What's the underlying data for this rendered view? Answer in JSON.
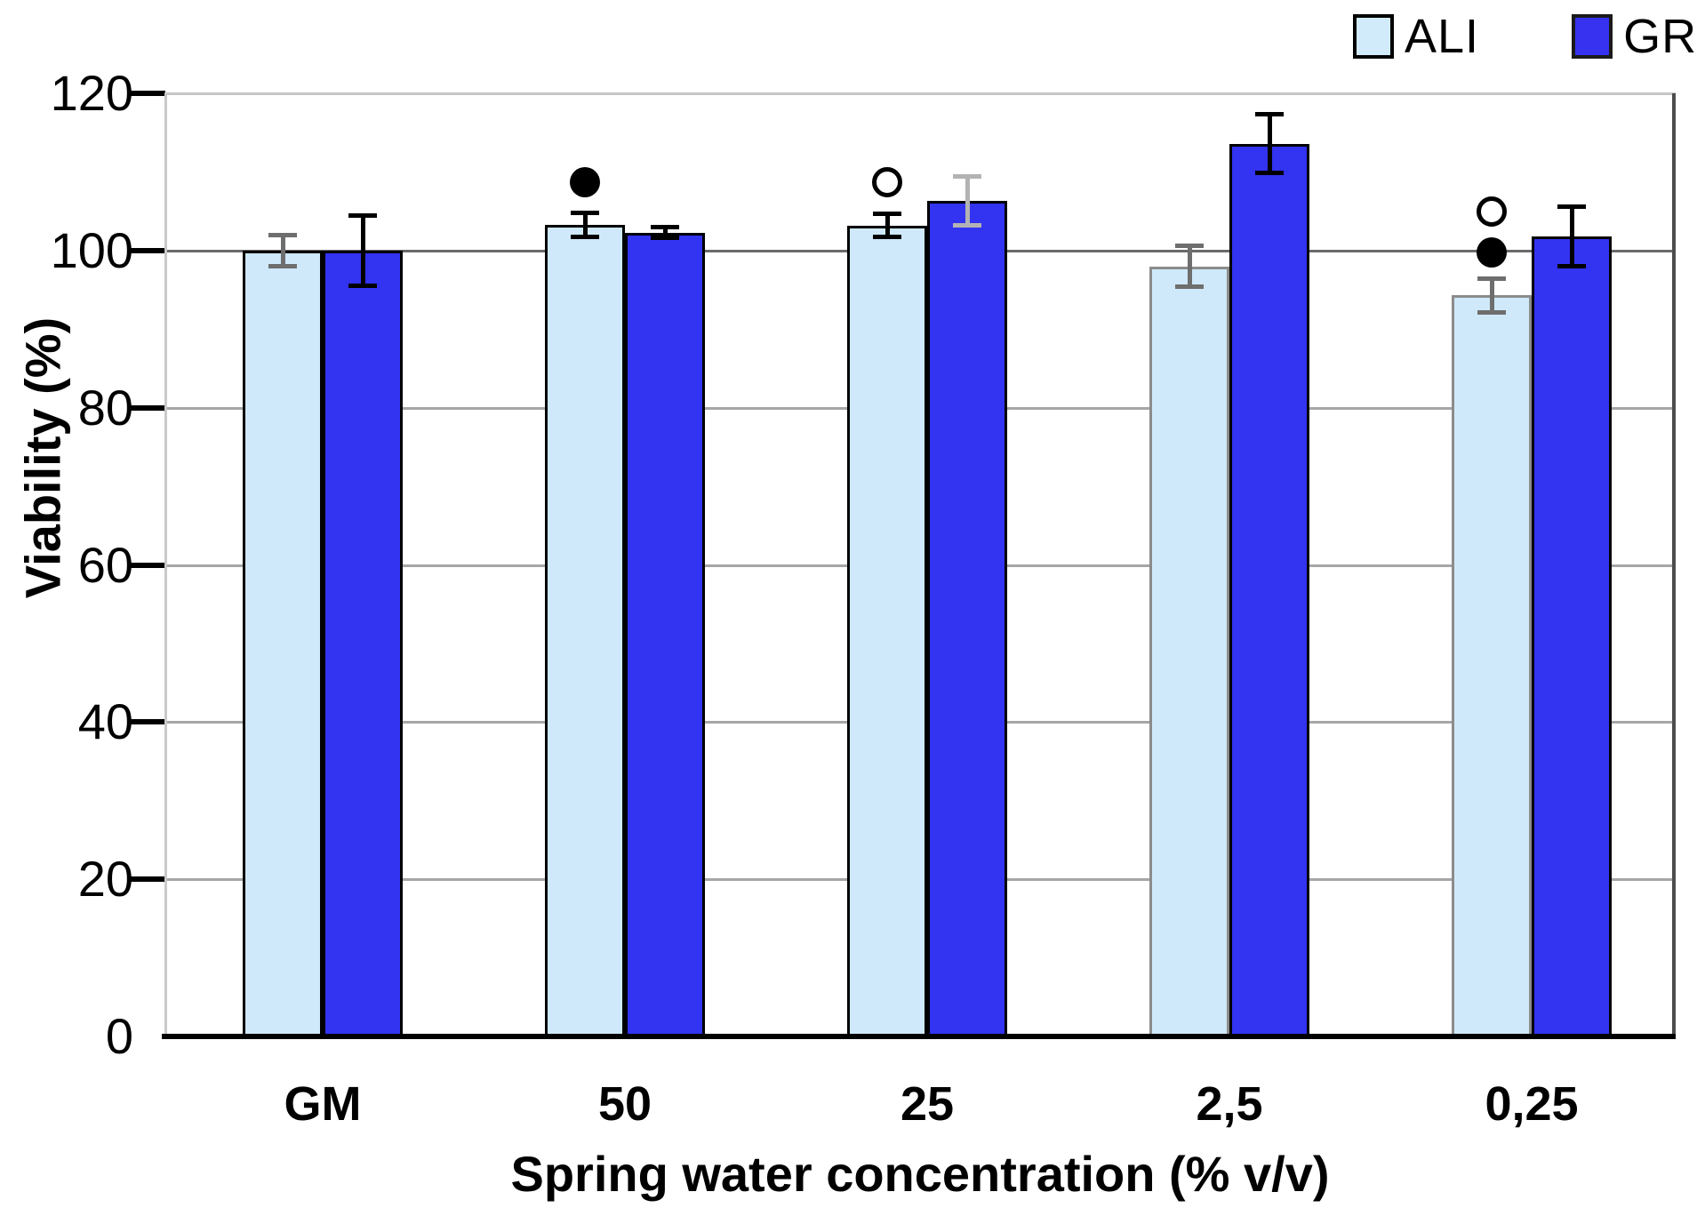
{
  "legend": {
    "items": [
      {
        "label": "ALI",
        "color": "#d2ebfb",
        "border": "#000000"
      },
      {
        "label": "GR",
        "color": "#3632f0",
        "border": "#1a1a1a"
      }
    ]
  },
  "chart_data": {
    "type": "bar",
    "title": "",
    "xlabel": "Spring water concentration (% v/v)",
    "ylabel": "Viability (%)",
    "ylim": [
      0,
      120
    ],
    "yticks": [
      0,
      20,
      40,
      60,
      80,
      100,
      120
    ],
    "categories": [
      "GM",
      "50",
      "25",
      "2,5",
      "0,25"
    ],
    "series": [
      {
        "name": "ALI",
        "fill": "#cfe9fa",
        "values": [
          100,
          103.3,
          103.2,
          98,
          94.3
        ],
        "errors": [
          2,
          1.6,
          1.5,
          2.7,
          2.2
        ],
        "bar_border_colors": [
          "#000000",
          "#000000",
          "#000000",
          "#8c8c8c",
          "#8c8c8c"
        ],
        "error_bar_colors": [
          "#6e6e6e",
          "#000000",
          "#000000",
          "#6e6e6e",
          "#6e6e6e"
        ]
      },
      {
        "name": "GR",
        "fill": "#3333f2",
        "values": [
          100,
          102.3,
          106.3,
          113.6,
          101.8
        ],
        "errors": [
          4.5,
          0.7,
          3.2,
          3.8,
          3.8
        ],
        "bar_border_colors": [
          "#000000",
          "#000000",
          "#000000",
          "#000000",
          "#000000"
        ],
        "error_bar_colors": [
          "#000000",
          "#000000",
          "#b3b3b3",
          "#000000",
          "#000000"
        ]
      }
    ],
    "annotations": [
      {
        "category": "50",
        "series": "ALI",
        "symbol": "filled-circle",
        "y": 108.7
      },
      {
        "category": "25",
        "series": "ALI",
        "symbol": "open-circle",
        "y": 108.7
      },
      {
        "category": "0,25",
        "series": "ALI",
        "symbol": "open-circle",
        "y": 105.0
      },
      {
        "category": "0,25",
        "series": "ALI",
        "symbol": "filled-circle",
        "y": 99.8
      }
    ],
    "grid": {
      "on": true,
      "line_color": "#a6a6a6",
      "line_color_100": "#6b6b6b",
      "top_border_color": "#c6c6c6",
      "right_border_color": "#4d4d4d",
      "axis_line_color": "#c9c9c9",
      "baseline_color": "#000000",
      "tick_color": "#000000"
    },
    "legend_position": "top-right"
  }
}
